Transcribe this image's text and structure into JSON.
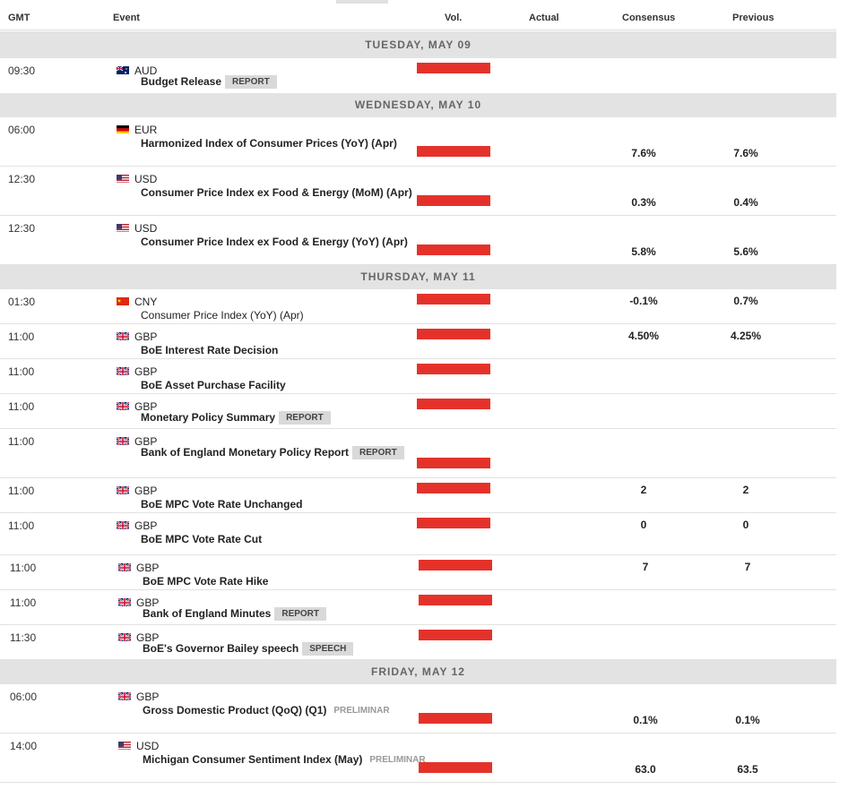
{
  "columns": {
    "gmt": "GMT",
    "event": "Event",
    "vol": "Vol.",
    "actual": "Actual",
    "consensus": "Consensus",
    "previous": "Previous"
  },
  "days": {
    "d1": "TUESDAY, MAY 09",
    "d2": "WEDNESDAY, MAY 10",
    "d3": "THURSDAY, MAY 11",
    "d4": "FRIDAY, MAY 12"
  },
  "events": [
    {
      "time": "09:30",
      "currency": "AUD",
      "flag": "au-flag-icon",
      "name": "Budget Release",
      "tag": "REPORT",
      "consensus": "",
      "previous": ""
    },
    {
      "time": "06:00",
      "currency": "EUR",
      "flag": "de-flag-icon",
      "name": "Harmonized Index of Consumer Prices (YoY) (Apr)",
      "tag": "",
      "consensus": "7.6%",
      "previous": "7.6%"
    },
    {
      "time": "12:30",
      "currency": "USD",
      "flag": "us-flag-icon",
      "name": "Consumer Price Index ex Food & Energy (MoM) (Apr)",
      "tag": "",
      "consensus": "0.3%",
      "previous": "0.4%"
    },
    {
      "time": "12:30",
      "currency": "USD",
      "flag": "us-flag-icon",
      "name": "Consumer Price Index ex Food & Energy (YoY) (Apr)",
      "tag": "",
      "consensus": "5.8%",
      "previous": "5.6%"
    },
    {
      "time": "01:30",
      "currency": "CNY",
      "flag": "cn-flag-icon",
      "name": "Consumer Price Index (YoY) (Apr)",
      "tag": "",
      "consensus": "-0.1%",
      "previous": "0.7%"
    },
    {
      "time": "11:00",
      "currency": "GBP",
      "flag": "gb-flag-icon",
      "name": "BoE Interest Rate Decision",
      "tag": "",
      "consensus": "4.50%",
      "previous": "4.25%"
    },
    {
      "time": "11:00",
      "currency": "GBP",
      "flag": "gb-flag-icon",
      "name": "BoE Asset Purchase Facility",
      "tag": "",
      "consensus": "",
      "previous": ""
    },
    {
      "time": "11:00",
      "currency": "GBP",
      "flag": "gb-flag-icon",
      "name": "Monetary Policy Summary",
      "tag": "REPORT",
      "consensus": "",
      "previous": ""
    },
    {
      "time": "11:00",
      "currency": "GBP",
      "flag": "gb-flag-icon",
      "name": "Bank of England Monetary Policy Report",
      "tag": "REPORT",
      "consensus": "",
      "previous": ""
    },
    {
      "time": "11:00",
      "currency": "GBP",
      "flag": "gb-flag-icon",
      "name": "BoE MPC Vote Rate Unchanged",
      "tag": "",
      "consensus": "2",
      "previous": "2"
    },
    {
      "time": "11:00",
      "currency": "GBP",
      "flag": "gb-flag-icon",
      "name": "BoE MPC Vote Rate Cut",
      "tag": "",
      "consensus": "0",
      "previous": "0"
    },
    {
      "time": "11:00",
      "currency": "GBP",
      "flag": "gb-flag-icon",
      "name": "BoE MPC Vote Rate Hike",
      "tag": "",
      "consensus": "7",
      "previous": "7"
    },
    {
      "time": "11:00",
      "currency": "GBP",
      "flag": "gb-flag-icon",
      "name": "Bank of England Minutes",
      "tag": "REPORT",
      "consensus": "",
      "previous": ""
    },
    {
      "time": "11:30",
      "currency": "GBP",
      "flag": "gb-flag-icon",
      "name": "BoE's Governor Bailey speech",
      "tag": "SPEECH",
      "consensus": "",
      "previous": ""
    },
    {
      "time": "06:00",
      "currency": "GBP",
      "flag": "gb-flag-icon",
      "name": "Gross Domestic Product (QoQ) (Q1)",
      "tag": "PRELIMINAR",
      "consensus": "0.1%",
      "previous": "0.1%"
    },
    {
      "time": "14:00",
      "currency": "USD",
      "flag": "us-flag-icon",
      "name": "Michigan Consumer Sentiment Index (May)",
      "tag": "PRELIMINAR",
      "consensus": "63.0",
      "previous": "63.5"
    }
  ],
  "volatility": "high",
  "colors": {
    "volatility_high": "#e4322b",
    "day_header_bg": "#e3e3e3"
  }
}
